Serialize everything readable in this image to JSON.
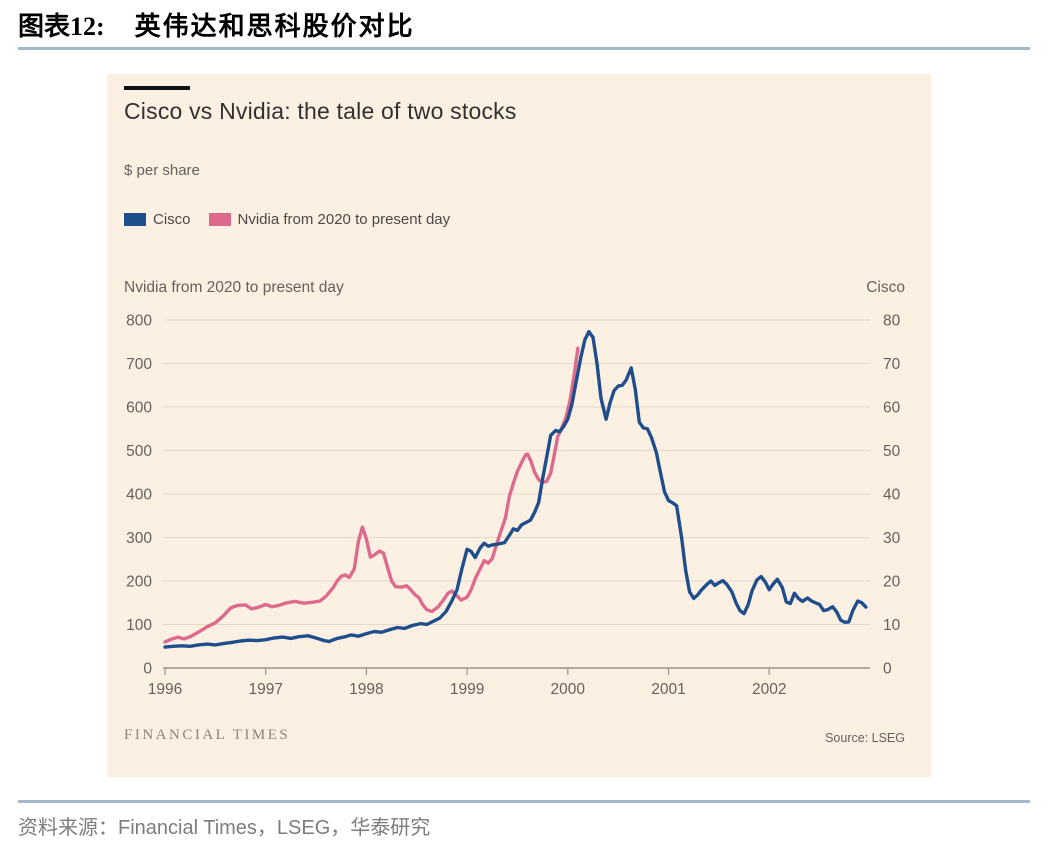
{
  "page": {
    "figure_label": "图表12:",
    "figure_title": "英伟达和思科股价对比",
    "caption": "资料来源：Financial Times，LSEG，华泰研究"
  },
  "panel": {
    "title": "Cisco vs Nvidia: the tale of two stocks",
    "unit_label": "$ per share",
    "legend": [
      {
        "label": "Cisco",
        "color": "#1f4e8c"
      },
      {
        "label": "Nvidia from 2020 to present day",
        "color": "#dd6a8c"
      }
    ],
    "brand": "FINANCIAL TIMES",
    "source": "Source: LSEG",
    "background": "#fcf0e3"
  },
  "chart_data": {
    "type": "line",
    "title": "Cisco vs Nvidia: the tale of two stocks",
    "unit": "$ per share",
    "x_range": [
      1996,
      2003
    ],
    "x_ticks": [
      1996,
      1997,
      1998,
      1999,
      2000,
      2001,
      2002
    ],
    "grid": true,
    "colors": {
      "grid": "#e7d9ca",
      "axis": "#9c948a",
      "background": "#fcf0e3"
    },
    "left_axis": {
      "title": "Nvidia from 2020 to present day",
      "range": [
        0,
        800
      ],
      "ticks": [
        0,
        100,
        200,
        300,
        400,
        500,
        600,
        700,
        800
      ]
    },
    "right_axis": {
      "title": "Cisco",
      "range": [
        0,
        80
      ],
      "ticks": [
        0,
        10,
        20,
        30,
        40,
        50,
        60,
        70,
        80
      ]
    },
    "series": [
      {
        "name": "Cisco",
        "axis": "right",
        "color": "#1f4e8c",
        "points": [
          [
            1996.0,
            4.8
          ],
          [
            1996.08,
            5.0
          ],
          [
            1996.17,
            5.1
          ],
          [
            1996.25,
            5.0
          ],
          [
            1996.33,
            5.3
          ],
          [
            1996.42,
            5.5
          ],
          [
            1996.5,
            5.3
          ],
          [
            1996.58,
            5.6
          ],
          [
            1996.67,
            5.9
          ],
          [
            1996.75,
            6.2
          ],
          [
            1996.83,
            6.4
          ],
          [
            1996.92,
            6.3
          ],
          [
            1997.0,
            6.5
          ],
          [
            1997.08,
            6.9
          ],
          [
            1997.17,
            7.1
          ],
          [
            1997.25,
            6.8
          ],
          [
            1997.33,
            7.2
          ],
          [
            1997.42,
            7.4
          ],
          [
            1997.5,
            6.9
          ],
          [
            1997.58,
            6.3
          ],
          [
            1997.63,
            6.1
          ],
          [
            1997.71,
            6.8
          ],
          [
            1997.79,
            7.2
          ],
          [
            1997.85,
            7.6
          ],
          [
            1997.92,
            7.3
          ],
          [
            1998.0,
            7.9
          ],
          [
            1998.08,
            8.4
          ],
          [
            1998.15,
            8.2
          ],
          [
            1998.23,
            8.8
          ],
          [
            1998.31,
            9.3
          ],
          [
            1998.38,
            9.1
          ],
          [
            1998.46,
            9.8
          ],
          [
            1998.54,
            10.2
          ],
          [
            1998.6,
            10.0
          ],
          [
            1998.67,
            10.8
          ],
          [
            1998.73,
            11.5
          ],
          [
            1998.79,
            13.0
          ],
          [
            1998.85,
            15.5
          ],
          [
            1998.9,
            18.0
          ],
          [
            1998.95,
            23.0
          ],
          [
            1999.0,
            27.3
          ],
          [
            1999.04,
            26.8
          ],
          [
            1999.08,
            25.4
          ],
          [
            1999.13,
            27.6
          ],
          [
            1999.17,
            28.7
          ],
          [
            1999.21,
            28.0
          ],
          [
            1999.25,
            28.3
          ],
          [
            1999.31,
            28.5
          ],
          [
            1999.37,
            28.8
          ],
          [
            1999.42,
            30.5
          ],
          [
            1999.46,
            32.0
          ],
          [
            1999.5,
            31.6
          ],
          [
            1999.54,
            32.9
          ],
          [
            1999.58,
            33.4
          ],
          [
            1999.63,
            34.0
          ],
          [
            1999.67,
            35.8
          ],
          [
            1999.71,
            38.0
          ],
          [
            1999.75,
            43.5
          ],
          [
            1999.79,
            48.5
          ],
          [
            1999.83,
            53.5
          ],
          [
            1999.88,
            54.6
          ],
          [
            1999.92,
            54.3
          ],
          [
            1999.96,
            55.6
          ],
          [
            2000.0,
            57.2
          ],
          [
            2000.04,
            60.5
          ],
          [
            2000.08,
            65.5
          ],
          [
            2000.13,
            71.5
          ],
          [
            2000.17,
            75.5
          ],
          [
            2000.21,
            77.3
          ],
          [
            2000.25,
            76.0
          ],
          [
            2000.29,
            70.0
          ],
          [
            2000.33,
            62.0
          ],
          [
            2000.38,
            57.2
          ],
          [
            2000.42,
            61.0
          ],
          [
            2000.46,
            63.8
          ],
          [
            2000.5,
            64.8
          ],
          [
            2000.54,
            65.0
          ],
          [
            2000.58,
            66.2
          ],
          [
            2000.63,
            69.0
          ],
          [
            2000.67,
            64.0
          ],
          [
            2000.71,
            56.5
          ],
          [
            2000.75,
            55.2
          ],
          [
            2000.79,
            55.0
          ],
          [
            2000.83,
            53.0
          ],
          [
            2000.88,
            49.5
          ],
          [
            2000.92,
            45.0
          ],
          [
            2000.96,
            40.5
          ],
          [
            2001.0,
            38.5
          ],
          [
            2001.04,
            38.0
          ],
          [
            2001.08,
            37.3
          ],
          [
            2001.13,
            30.0
          ],
          [
            2001.17,
            22.5
          ],
          [
            2001.21,
            17.5
          ],
          [
            2001.25,
            16.0
          ],
          [
            2001.29,
            16.8
          ],
          [
            2001.33,
            18.0
          ],
          [
            2001.38,
            19.2
          ],
          [
            2001.42,
            20.0
          ],
          [
            2001.46,
            19.0
          ],
          [
            2001.5,
            19.6
          ],
          [
            2001.54,
            20.1
          ],
          [
            2001.58,
            19.2
          ],
          [
            2001.63,
            17.5
          ],
          [
            2001.67,
            15.0
          ],
          [
            2001.71,
            13.2
          ],
          [
            2001.75,
            12.5
          ],
          [
            2001.79,
            14.5
          ],
          [
            2001.83,
            17.8
          ],
          [
            2001.88,
            20.3
          ],
          [
            2001.92,
            21.0
          ],
          [
            2001.96,
            19.8
          ],
          [
            2002.0,
            18.0
          ],
          [
            2002.04,
            19.3
          ],
          [
            2002.08,
            20.4
          ],
          [
            2002.13,
            18.5
          ],
          [
            2002.17,
            15.2
          ],
          [
            2002.21,
            14.8
          ],
          [
            2002.25,
            17.2
          ],
          [
            2002.29,
            16.0
          ],
          [
            2002.33,
            15.3
          ],
          [
            2002.38,
            16.1
          ],
          [
            2002.42,
            15.4
          ],
          [
            2002.46,
            15.0
          ],
          [
            2002.5,
            14.6
          ],
          [
            2002.54,
            13.2
          ],
          [
            2002.58,
            13.4
          ],
          [
            2002.63,
            14.1
          ],
          [
            2002.67,
            12.9
          ],
          [
            2002.71,
            11.0
          ],
          [
            2002.75,
            10.5
          ],
          [
            2002.79,
            10.6
          ],
          [
            2002.83,
            13.2
          ],
          [
            2002.88,
            15.4
          ],
          [
            2002.92,
            15.0
          ],
          [
            2002.96,
            14.0
          ]
        ]
      },
      {
        "name": "Nvidia from 2020 to present day",
        "axis": "left",
        "color": "#dd6a8c",
        "points": [
          [
            1996.0,
            60
          ],
          [
            1996.06,
            66
          ],
          [
            1996.13,
            71
          ],
          [
            1996.19,
            67
          ],
          [
            1996.25,
            72
          ],
          [
            1996.33,
            82
          ],
          [
            1996.42,
            95
          ],
          [
            1996.5,
            104
          ],
          [
            1996.58,
            120
          ],
          [
            1996.65,
            138
          ],
          [
            1996.72,
            144
          ],
          [
            1996.8,
            145
          ],
          [
            1996.86,
            136
          ],
          [
            1996.92,
            139
          ],
          [
            1997.0,
            146
          ],
          [
            1997.06,
            141
          ],
          [
            1997.13,
            144
          ],
          [
            1997.21,
            150
          ],
          [
            1997.29,
            153
          ],
          [
            1997.38,
            149
          ],
          [
            1997.46,
            151
          ],
          [
            1997.54,
            154
          ],
          [
            1997.6,
            165
          ],
          [
            1997.67,
            185
          ],
          [
            1997.71,
            200
          ],
          [
            1997.75,
            211
          ],
          [
            1997.79,
            214
          ],
          [
            1997.83,
            208
          ],
          [
            1997.88,
            228
          ],
          [
            1997.92,
            290
          ],
          [
            1997.96,
            324
          ],
          [
            1998.0,
            296
          ],
          [
            1998.04,
            255
          ],
          [
            1998.08,
            260
          ],
          [
            1998.13,
            269
          ],
          [
            1998.17,
            264
          ],
          [
            1998.21,
            232
          ],
          [
            1998.25,
            200
          ],
          [
            1998.29,
            187
          ],
          [
            1998.35,
            186
          ],
          [
            1998.4,
            189
          ],
          [
            1998.44,
            180
          ],
          [
            1998.48,
            169
          ],
          [
            1998.52,
            162
          ],
          [
            1998.56,
            145
          ],
          [
            1998.6,
            134
          ],
          [
            1998.65,
            130
          ],
          [
            1998.71,
            140
          ],
          [
            1998.77,
            158
          ],
          [
            1998.81,
            172
          ],
          [
            1998.85,
            177
          ],
          [
            1998.9,
            166
          ],
          [
            1998.94,
            156
          ],
          [
            1999.0,
            163
          ],
          [
            1999.04,
            180
          ],
          [
            1999.08,
            205
          ],
          [
            1999.13,
            228
          ],
          [
            1999.17,
            247
          ],
          [
            1999.21,
            241
          ],
          [
            1999.25,
            252
          ],
          [
            1999.29,
            282
          ],
          [
            1999.33,
            310
          ],
          [
            1999.38,
            345
          ],
          [
            1999.42,
            395
          ],
          [
            1999.46,
            425
          ],
          [
            1999.5,
            452
          ],
          [
            1999.54,
            472
          ],
          [
            1999.58,
            490
          ],
          [
            1999.6,
            492
          ],
          [
            1999.63,
            478
          ],
          [
            1999.67,
            450
          ],
          [
            1999.71,
            433
          ],
          [
            1999.75,
            427
          ],
          [
            1999.79,
            429
          ],
          [
            1999.83,
            448
          ],
          [
            1999.87,
            495
          ],
          [
            1999.9,
            532
          ],
          [
            1999.94,
            552
          ],
          [
            1999.98,
            575
          ],
          [
            2000.02,
            612
          ],
          [
            2000.06,
            668
          ],
          [
            2000.1,
            735
          ]
        ]
      }
    ]
  }
}
